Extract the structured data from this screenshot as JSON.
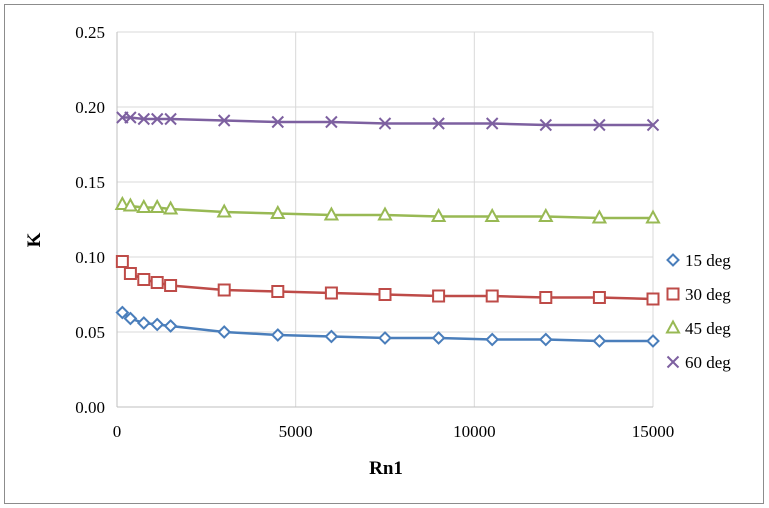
{
  "chart_data": {
    "type": "scatter",
    "title": "",
    "xlabel": "Rn1",
    "ylabel": "K",
    "xlim": [
      0,
      15000
    ],
    "ylim": [
      0,
      0.25
    ],
    "xticks": [
      0,
      5000,
      10000,
      15000
    ],
    "xtick_labels": [
      "0",
      "5000",
      "10000",
      "15000"
    ],
    "yticks": [
      0,
      0.05,
      0.1,
      0.15,
      0.2,
      0.25
    ],
    "ytick_labels": [
      "0.00",
      "0.05",
      "0.10",
      "0.15",
      "0.20",
      "0.25"
    ],
    "grid": true,
    "legend_position": "right",
    "series": [
      {
        "name": "15 deg",
        "marker": "diamond",
        "color": "#4a7ebb",
        "x": [
          150,
          375,
          750,
          1125,
          1500,
          3000,
          4500,
          6000,
          7500,
          9000,
          10500,
          12000,
          13500,
          15000
        ],
        "y": [
          0.063,
          0.059,
          0.056,
          0.055,
          0.054,
          0.05,
          0.048,
          0.047,
          0.046,
          0.046,
          0.045,
          0.045,
          0.044,
          0.044
        ]
      },
      {
        "name": "30 deg",
        "marker": "square",
        "color": "#be4b48",
        "x": [
          150,
          375,
          750,
          1125,
          1500,
          3000,
          4500,
          6000,
          7500,
          9000,
          10500,
          12000,
          13500,
          15000
        ],
        "y": [
          0.097,
          0.089,
          0.085,
          0.083,
          0.081,
          0.078,
          0.077,
          0.076,
          0.075,
          0.074,
          0.074,
          0.073,
          0.073,
          0.072
        ]
      },
      {
        "name": "45 deg",
        "marker": "triangle",
        "color": "#98b954",
        "x": [
          150,
          375,
          750,
          1125,
          1500,
          3000,
          4500,
          6000,
          7500,
          9000,
          10500,
          12000,
          13500,
          15000
        ],
        "y": [
          0.135,
          0.134,
          0.133,
          0.133,
          0.132,
          0.13,
          0.129,
          0.128,
          0.128,
          0.127,
          0.127,
          0.127,
          0.126,
          0.126
        ]
      },
      {
        "name": "60 deg",
        "marker": "x",
        "color": "#7d60a0",
        "x": [
          150,
          375,
          750,
          1125,
          1500,
          3000,
          4500,
          6000,
          7500,
          9000,
          10500,
          12000,
          13500,
          15000
        ],
        "y": [
          0.193,
          0.193,
          0.192,
          0.192,
          0.192,
          0.191,
          0.19,
          0.19,
          0.189,
          0.189,
          0.189,
          0.188,
          0.188,
          0.188
        ]
      }
    ]
  }
}
